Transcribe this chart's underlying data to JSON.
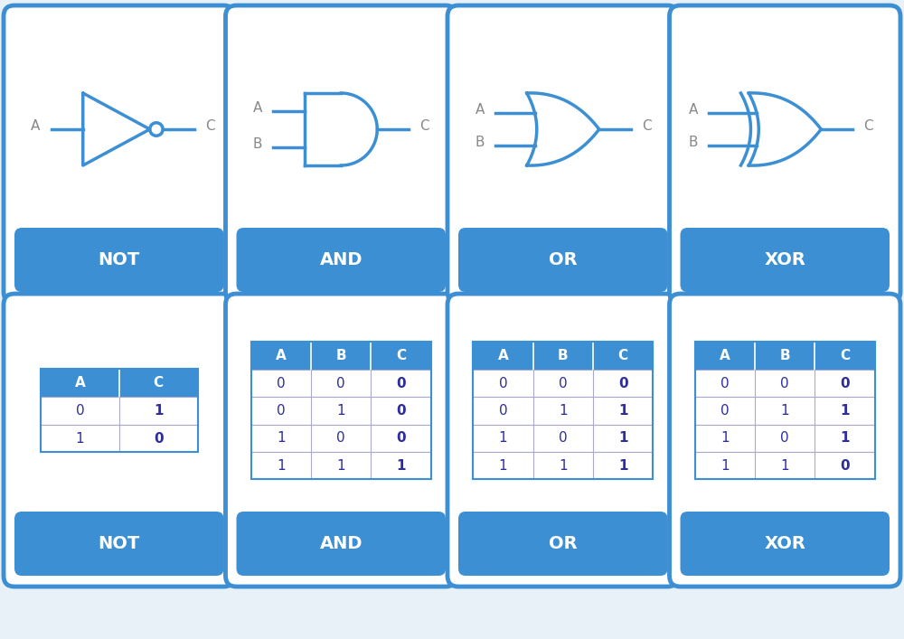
{
  "bg_color": "#e8f0f8",
  "card_border_color": "#3d8fd4",
  "card_fill_color": "#ffffff",
  "card_label_bg": "#3d8fd4",
  "card_label_text_color": "#ffffff",
  "gate_color": "#3d8fd4",
  "label_color": "#888888",
  "table_header_bg": "#3d8fd4",
  "table_header_text": "#ffffff",
  "table_cell_bg": "#ffffff",
  "table_border_color": "#aaaacc",
  "table_data_color": "#2d2d9f",
  "gates": [
    "NOT",
    "AND",
    "OR",
    "XOR"
  ],
  "not_table": {
    "headers": [
      "A",
      "C"
    ],
    "rows": [
      [
        "0",
        "1"
      ],
      [
        "1",
        "0"
      ]
    ]
  },
  "and_table": {
    "headers": [
      "A",
      "B",
      "C"
    ],
    "rows": [
      [
        "0",
        "0",
        "0"
      ],
      [
        "0",
        "1",
        "0"
      ],
      [
        "1",
        "0",
        "0"
      ],
      [
        "1",
        "1",
        "1"
      ]
    ]
  },
  "or_table": {
    "headers": [
      "A",
      "B",
      "C"
    ],
    "rows": [
      [
        "0",
        "0",
        "0"
      ],
      [
        "0",
        "1",
        "1"
      ],
      [
        "1",
        "0",
        "1"
      ],
      [
        "1",
        "1",
        "1"
      ]
    ]
  },
  "xor_table": {
    "headers": [
      "A",
      "B",
      "C"
    ],
    "rows": [
      [
        "0",
        "0",
        "0"
      ],
      [
        "0",
        "1",
        "1"
      ],
      [
        "1",
        "0",
        "1"
      ],
      [
        "1",
        "1",
        "0"
      ]
    ]
  }
}
